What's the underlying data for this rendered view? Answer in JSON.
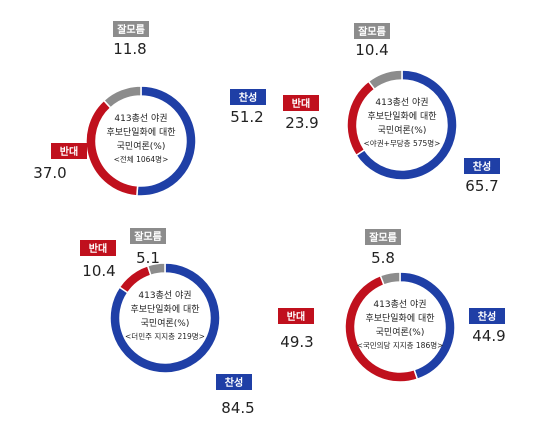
{
  "colors": {
    "yes": "#1f3fa6",
    "no": "#c0101d",
    "neutral": "#8c8c8c",
    "text": "#222222"
  },
  "chart_data": [
    {
      "type": "pie",
      "center_title": [
        "413총선 야권",
        "후보단일화에 대한",
        "국민여론(%)"
      ],
      "center_subtitle": "<전체 1064명>",
      "categories": [
        "찬성",
        "반대",
        "잘모름"
      ],
      "values": [
        51.2,
        37.0,
        11.8
      ],
      "value_labels": [
        "51.2",
        "37.0",
        "11.8"
      ]
    },
    {
      "type": "pie",
      "center_title": [
        "413총선 야권",
        "후보단일화에 대한",
        "국민여론(%)"
      ],
      "center_subtitle": "<야권+무당층 575명>",
      "categories": [
        "찬성",
        "반대",
        "잘모름"
      ],
      "values": [
        65.7,
        23.9,
        10.4
      ],
      "value_labels": [
        "65.7",
        "23.9",
        "10.4"
      ]
    },
    {
      "type": "pie",
      "center_title": [
        "413총선 야권",
        "후보단일화에 대한",
        "국민여론(%)"
      ],
      "center_subtitle": "<더민주 지지층 219명>",
      "categories": [
        "찬성",
        "반대",
        "잘모름"
      ],
      "values": [
        84.5,
        10.4,
        5.1
      ],
      "value_labels": [
        "84.5",
        "10.4",
        "5.1"
      ]
    },
    {
      "type": "pie",
      "center_title": [
        "413총선 야권",
        "후보단일화에 대한",
        "국민여론(%)"
      ],
      "center_subtitle": "<국민의당 지지층 186명>",
      "categories": [
        "찬성",
        "반대",
        "잘모름"
      ],
      "values": [
        44.9,
        49.3,
        5.8
      ],
      "value_labels": [
        "44.9",
        "49.3",
        "5.8"
      ]
    }
  ]
}
